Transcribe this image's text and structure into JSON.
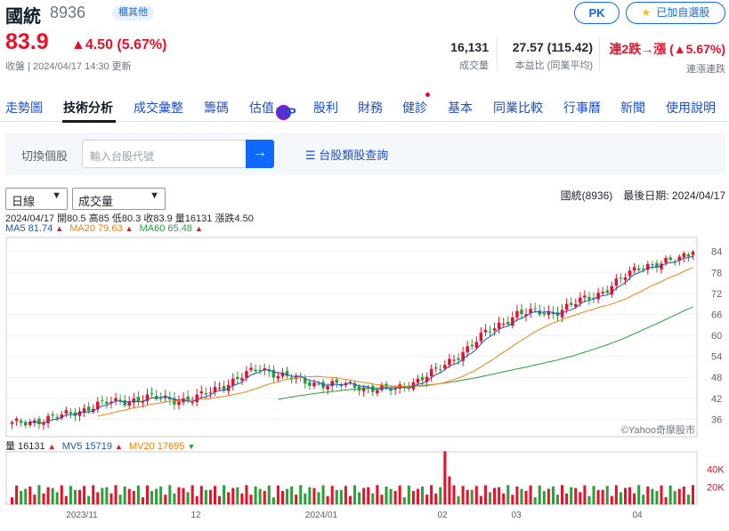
{
  "stock": {
    "name": "國統",
    "code": "8936",
    "tag": "櫃其他",
    "price": "83.9",
    "change": "▲4.50 (5.67%)",
    "status": "收盤 | 2024/04/17 14:30 更新"
  },
  "buttons": {
    "pk": "PK",
    "fav": "已加自選股"
  },
  "stats": [
    {
      "value": "16,131",
      "label": "成交量"
    },
    {
      "value": "27.57 (115.42)",
      "label": "本益比 (同業平均)"
    },
    {
      "value": "連2跌→漲 (▲5.67%)",
      "label": "連漲連跌"
    }
  ],
  "nav": [
    "走勢圖",
    "技術分析",
    "成交彙整",
    "籌碼",
    "估值",
    "股利",
    "財務",
    "健診",
    "基本",
    "同業比較",
    "行事曆",
    "新聞",
    "使用說明"
  ],
  "vip_badge": "VIP",
  "search": {
    "label": "切換個股",
    "placeholder": "輸入台股代號",
    "category": "台股類股查詢"
  },
  "selects": {
    "period": "日線",
    "indicator": "成交量"
  },
  "chart_meta": "國統(8936)　最後日期: 2024/04/17",
  "ohlc_line": "2024/04/17 開80.5 高85 低80.3 收83.9 量16131 漲跌4.50",
  "ma": [
    {
      "label": "MA5 81.74",
      "color": "#1a53c8"
    },
    {
      "label": "MA20 79.63",
      "color": "#ff7e0a"
    },
    {
      "label": "MA60 65.48",
      "color": "#2aa03c"
    }
  ],
  "vol_line": [
    {
      "label": "量 16131",
      "color": "#232a31",
      "dir": "up"
    },
    {
      "label": "MV5 15719",
      "color": "#1a53c8",
      "dir": "up"
    },
    {
      "label": "MV20 17695",
      "color": "#ff7e0a",
      "dir": "down"
    }
  ],
  "watermark": "©Yahoo奇摩股市",
  "chart_data": {
    "type": "candlestick",
    "price_ticks": [
      "84",
      "78",
      "72",
      "66",
      "60",
      "54",
      "48",
      "42",
      "36"
    ],
    "volume_ticks": [
      "40K",
      "20K"
    ],
    "x_ticks": [
      "2023/11",
      "12",
      "2024/01",
      "02",
      "03",
      "04"
    ],
    "ma_colors": {
      "ma5": "#1a53c8",
      "ma20": "#ff7e0a",
      "ma60": "#2aa03c"
    },
    "approx_close_points": [
      [
        0,
        34.6
      ],
      [
        10,
        36.5
      ],
      [
        20,
        40.5
      ],
      [
        30,
        42.1
      ],
      [
        40,
        41.4
      ],
      [
        45,
        44.6
      ],
      [
        55,
        50.6
      ],
      [
        65,
        46.5
      ],
      [
        72,
        45.9
      ],
      [
        85,
        44.3
      ],
      [
        95,
        50.4
      ],
      [
        105,
        60.5
      ],
      [
        112,
        66.3
      ],
      [
        120,
        66.5
      ],
      [
        130,
        71.9
      ],
      [
        140,
        80.1
      ],
      [
        147,
        81.2
      ],
      [
        151,
        83.9
      ]
    ]
  }
}
